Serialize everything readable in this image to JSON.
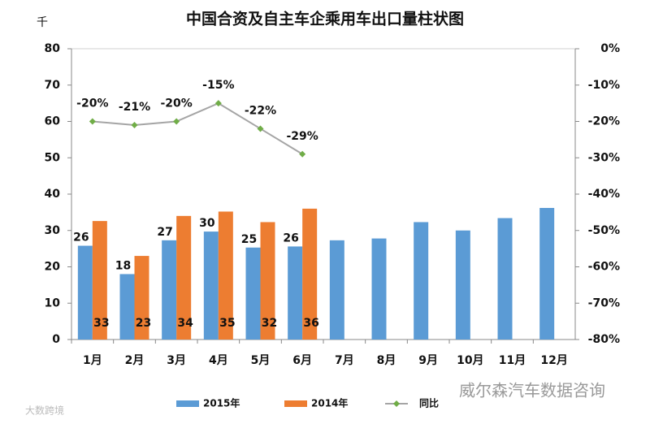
{
  "chart_data": {
    "type": "bar",
    "title": "中国合资及自主车企乘用车出口量柱状图",
    "y_unit": "千",
    "categories": [
      "1月",
      "2月",
      "3月",
      "4月",
      "5月",
      "6月",
      "7月",
      "8月",
      "9月",
      "10月",
      "11月",
      "12月"
    ],
    "series": [
      {
        "name": "2015年",
        "color": "#5b9bd5",
        "values": [
          25.8,
          18,
          27.3,
          29.7,
          25.3,
          25.6,
          27.3,
          27.8,
          32.3,
          30,
          33.4,
          36.2
        ],
        "value_labels": [
          "26",
          "18",
          "27",
          "30",
          "25",
          "26",
          null,
          null,
          null,
          null,
          null,
          null
        ]
      },
      {
        "name": "2014年",
        "color": "#ed7d31",
        "values": [
          32.6,
          23,
          34,
          35.2,
          32.3,
          36,
          null,
          null,
          null,
          null,
          null,
          null
        ],
        "value_labels": [
          "33",
          "23",
          "34",
          "35",
          "32",
          "36",
          null,
          null,
          null,
          null,
          null,
          null
        ]
      },
      {
        "name": "同比",
        "type": "line",
        "axis": "y2",
        "color": "#a5a5a5",
        "marker_color": "#70ad47",
        "values": [
          -20,
          -21,
          -20,
          -15,
          -22,
          -29,
          null,
          null,
          null,
          null,
          null,
          null
        ],
        "value_labels": [
          "-20%",
          "-21%",
          "-20%",
          "-15%",
          "-22%",
          "-29%",
          null,
          null,
          null,
          null,
          null,
          null
        ]
      }
    ],
    "ylim": [
      0,
      80
    ],
    "yticks": [
      0,
      10,
      20,
      30,
      40,
      50,
      60,
      70,
      80
    ],
    "y2lim": [
      -80,
      0
    ],
    "y2ticks": [
      {
        "value": -80,
        "label": "-80%"
      },
      {
        "value": -70,
        "label": "-70%"
      },
      {
        "value": -60,
        "label": "-60%"
      },
      {
        "value": -50,
        "label": "-50%"
      },
      {
        "value": -40,
        "label": "-40%"
      },
      {
        "value": -30,
        "label": "-30%"
      },
      {
        "value": -20,
        "label": "-20%"
      },
      {
        "value": -10,
        "label": "-10%"
      },
      {
        "value": 0,
        "label": "0%"
      }
    ],
    "grid": false,
    "legend": "bottom",
    "watermarks": [
      "威尔森汽车数据咨询",
      "大数跨境"
    ]
  }
}
